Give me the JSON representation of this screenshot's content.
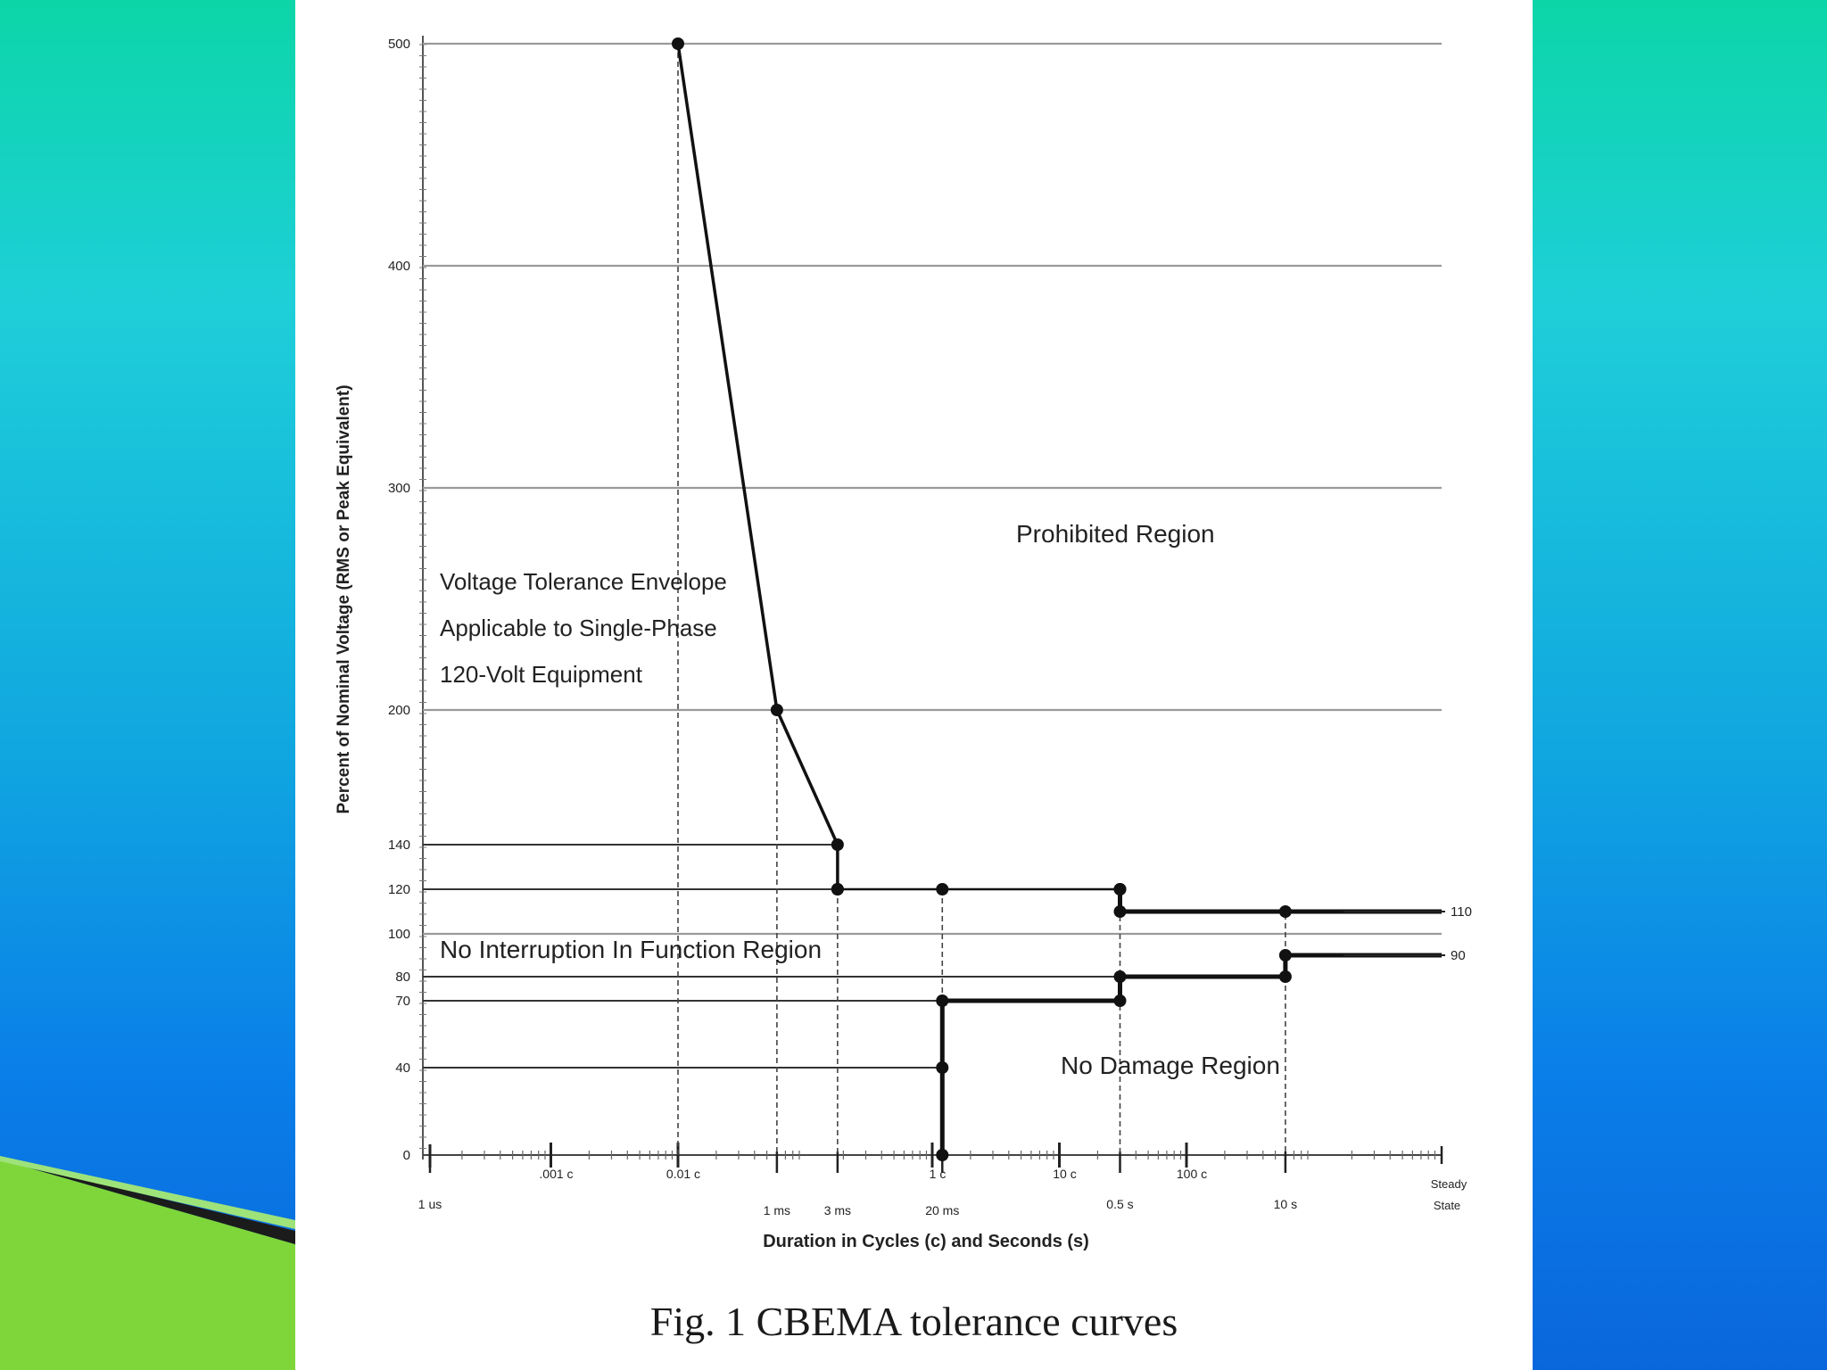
{
  "chart_data": {
    "type": "line",
    "title": "",
    "caption": "Fig. 1  CBEMA tolerance curves",
    "xlabel": "Duration in Cycles (c) and Seconds (s)",
    "ylabel": "Percent of Nominal Voltage (RMS or Peak Equivalent)",
    "x_scale": "log",
    "y_ticks": [
      0,
      40,
      70,
      80,
      100,
      120,
      140,
      200,
      300,
      400,
      500
    ],
    "y_tick_labels": [
      "0",
      "40",
      "70",
      "80",
      "100",
      "120",
      "140",
      "200",
      "300",
      "400",
      "500"
    ],
    "x_ticks_top": [
      {
        "label": ".001 c",
        "x": 0.001
      },
      {
        "label": "0.01 c",
        "x": 0.01
      },
      {
        "label": "1 c",
        "x": 1
      },
      {
        "label": "10 c",
        "x": 10
      },
      {
        "label": "100 c",
        "x": 100
      }
    ],
    "x_ticks_bottom": [
      {
        "label": "1 us",
        "x": 6e-05
      },
      {
        "label": "1 ms",
        "x": 0.06
      },
      {
        "label": "3 ms",
        "x": 0.18
      },
      {
        "label": "20 ms",
        "x": 1.2
      },
      {
        "label": "0.5 s",
        "x": 30
      },
      {
        "label": "10 s",
        "x": 600
      }
    ],
    "steady_state_label": [
      "Steady",
      "State"
    ],
    "right_labels": [
      {
        "label": "110",
        "y": 110
      },
      {
        "label": "90",
        "y": 90
      }
    ],
    "annotations": [
      {
        "text": "Prohibited Region"
      },
      {
        "text": [
          "Voltage Tolerance Envelope",
          "Applicable to Single-Phase",
          "120-Volt Equipment"
        ]
      },
      {
        "text": "No Interruption In Function Region"
      },
      {
        "text": "No Damage Region"
      }
    ],
    "upper_curve": [
      {
        "x": 0.01,
        "y": 500
      },
      {
        "x": 0.06,
        "y": 200
      },
      {
        "x": 0.18,
        "y": 140
      },
      {
        "x": 0.18,
        "y": 120
      },
      {
        "x": 1.2,
        "y": 120
      },
      {
        "x": 30,
        "y": 120
      },
      {
        "x": 30,
        "y": 110
      },
      {
        "x": 600,
        "y": 110
      },
      {
        "x": "steady",
        "y": 110
      }
    ],
    "lower_curve": [
      {
        "x": 1.2,
        "y": 0
      },
      {
        "x": 1.2,
        "y": 40
      },
      {
        "x": 1.2,
        "y": 70
      },
      {
        "x": 30,
        "y": 70
      },
      {
        "x": 30,
        "y": 80
      },
      {
        "x": 600,
        "y": 80
      },
      {
        "x": 600,
        "y": 90
      },
      {
        "x": "steady",
        "y": 90
      }
    ]
  }
}
